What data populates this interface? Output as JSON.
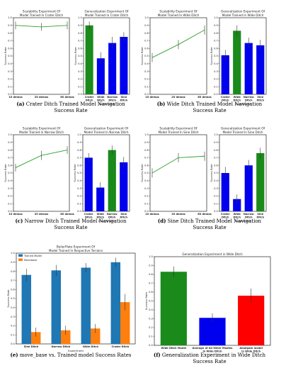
{
  "captions": [
    {
      "label": "(a)",
      "text": [
        "Crater Ditch Trained Model Navigation",
        "Success Rate"
      ]
    },
    {
      "label": "(b)",
      "text": [
        "Wide Ditch Trained Model Navigation",
        "Success Rate"
      ]
    },
    {
      "label": "(c)",
      "text": [
        "Narrow Ditch Trained Model Navigation",
        "Success Rate"
      ]
    },
    {
      "label": "(d)",
      "text": [
        "Sine Ditch Trained Model Navigation",
        "Success Rate"
      ]
    },
    {
      "label": "(e)",
      "text": [
        "move_base vs. Trained model Success Rates"
      ]
    },
    {
      "label": "(f)",
      "text": [
        "Generalization Experiment in Wide Ditch",
        "Success Rate"
      ]
    }
  ],
  "chart_data": [
    {
      "id": "a1",
      "type": "line",
      "title": [
        "Scalability Experiment Of",
        "Model Trained In Crater Ditch"
      ],
      "xlabel": "",
      "ylabel": "Success Rate",
      "categories": [
        "10 demos",
        "20 demos",
        "60 demos"
      ],
      "values": [
        0.9,
        0.88,
        0.9
      ],
      "errors": [
        0.05,
        0.05,
        0.05
      ],
      "ylim": [
        0,
        1.0
      ],
      "color": "#2ca02c"
    },
    {
      "id": "a2",
      "type": "bar",
      "title": [
        "Generalization Experiment Of",
        "Model Trained In Crater Ditch"
      ],
      "xlabel": "Experiment",
      "ylabel": "Success Rate",
      "categories": [
        [
          "Crater",
          "Ditch"
        ],
        [
          "Wide",
          "Ditch"
        ],
        [
          "Narrow",
          "Ditch"
        ],
        [
          "Sine",
          "Ditch"
        ]
      ],
      "values": [
        0.9,
        0.47,
        0.67,
        0.75
      ],
      "errors": [
        0.05,
        0.08,
        0.08,
        0.06
      ],
      "colors": [
        "#1a8a1a",
        "#0000ee",
        "#0000ee",
        "#0000ee"
      ],
      "ylim": [
        0,
        1.0
      ]
    },
    {
      "id": "b1",
      "type": "line",
      "title": [
        "Scalability Experiment Of",
        "Model Trained In Wide Ditch"
      ],
      "xlabel": "",
      "ylabel": "Success Rate",
      "categories": [
        "10 demos",
        "20 demos",
        "60 demos"
      ],
      "values": [
        0.48,
        0.65,
        0.84
      ],
      "errors": [
        0.06,
        0.06,
        0.06
      ],
      "ylim": [
        0,
        1.0
      ],
      "color": "#2ca02c"
    },
    {
      "id": "b2",
      "type": "bar",
      "title": [
        "Generalization Experiment Of",
        "Model Trained In Wide Ditch"
      ],
      "xlabel": "Experiment",
      "ylabel": "Success Rate",
      "categories": [
        [
          "Crater",
          "Ditch"
        ],
        [
          "Wide",
          "Ditch"
        ],
        [
          "Narrow",
          "Ditch"
        ],
        [
          "Sine",
          "Ditch"
        ]
      ],
      "values": [
        0.51,
        0.83,
        0.67,
        0.64
      ],
      "errors": [
        0.07,
        0.07,
        0.07,
        0.07
      ],
      "colors": [
        "#0000ee",
        "#1a8a1a",
        "#0000ee",
        "#0000ee"
      ],
      "ylim": [
        0,
        1.0
      ]
    },
    {
      "id": "c1",
      "type": "line",
      "title": [
        "Scalability Experiment Of",
        "Model Trained In Narrow Ditch"
      ],
      "xlabel": "",
      "ylabel": "Success Rate",
      "categories": [
        "10 demos",
        "20 demos",
        "60 demos"
      ],
      "values": [
        0.57,
        0.73,
        0.8
      ],
      "errors": [
        0.05,
        0.06,
        0.05
      ],
      "ylim": [
        0,
        1.0
      ],
      "color": "#2ca02c"
    },
    {
      "id": "c2",
      "type": "bar",
      "title": [
        "Generalization Experiment Of",
        "Model Trained In Narrow Ditch"
      ],
      "xlabel": "Experiment",
      "ylabel": "Success Rate",
      "categories": [
        [
          "Crater",
          "Ditch"
        ],
        [
          "Wide",
          "Ditch"
        ],
        [
          "Narrow",
          "Ditch"
        ],
        [
          "Sine",
          "Ditch"
        ]
      ],
      "values": [
        0.7,
        0.31,
        0.8,
        0.64
      ],
      "errors": [
        0.06,
        0.07,
        0.06,
        0.07
      ],
      "colors": [
        "#0000ee",
        "#0000ee",
        "#1a8a1a",
        "#0000ee"
      ],
      "ylim": [
        0,
        1.0
      ]
    },
    {
      "id": "d1",
      "type": "line",
      "title": [
        "Scalability Experiment Of",
        "Model Trained In Sine Ditch"
      ],
      "xlabel": "",
      "ylabel": "Success Rate",
      "categories": [
        "10 demos",
        "20 demos",
        "60 demos"
      ],
      "values": [
        0.5,
        0.7,
        0.72
      ],
      "errors": [
        0.06,
        0.06,
        0.06
      ],
      "ylim": [
        0,
        1.0
      ],
      "color": "#2ca02c"
    },
    {
      "id": "d2",
      "type": "bar",
      "title": [
        "Generalization Experiment Of",
        "Model Trained In Sine Ditch"
      ],
      "xlabel": "Experiment",
      "ylabel": "Success Rate",
      "categories": [
        [
          "Crater",
          "Ditch"
        ],
        [
          "Wide",
          "Ditch"
        ],
        [
          "Narrow",
          "Ditch"
        ],
        [
          "Sine",
          "Ditch"
        ]
      ],
      "values": [
        0.5,
        0.16,
        0.6,
        0.76
      ],
      "errors": [
        0.08,
        0.06,
        0.07,
        0.07
      ],
      "colors": [
        "#0000ee",
        "#0000ee",
        "#0000ee",
        "#1a8a1a"
      ],
      "ylim": [
        0,
        1.0
      ]
    },
    {
      "id": "e",
      "type": "bar",
      "title": [
        "BoilerPlate Experiment Of",
        "Model Trained In Respective Terrains"
      ],
      "xlabel": "Experiment",
      "ylabel": "Success Rate",
      "categories": [
        "Sine Ditch",
        "Narrow Ditch",
        "Wide Ditch",
        "Crater Ditch"
      ],
      "ylim": [
        0,
        1.0
      ],
      "legend": "top-left",
      "series": [
        {
          "name": "Trained Model",
          "color": "#1f77b4",
          "values": [
            0.76,
            0.81,
            0.84,
            0.9
          ],
          "errors": [
            0.07,
            0.06,
            0.05,
            0.05
          ]
        },
        {
          "name": "Movebase",
          "color": "#ff7f0e",
          "values": [
            0.13,
            0.15,
            0.17,
            0.46
          ],
          "errors": [
            0.05,
            0.05,
            0.05,
            0.09
          ]
        }
      ]
    },
    {
      "id": "f",
      "type": "bar",
      "title": [
        "Generalization Experiment in Wide Ditch"
      ],
      "xlabel": "",
      "ylabel": "Success Rate",
      "categories": [
        [
          "Wide Ditch Model"
        ],
        [
          "Average of All Other Models",
          "in Wide Ditch"
        ],
        [
          "Amalgam model",
          "in Wide Ditch"
        ]
      ],
      "values": [
        0.83,
        0.31,
        0.56
      ],
      "errors": [
        0.06,
        0.05,
        0.08
      ],
      "colors": [
        "#1a8a1a",
        "#0000ee",
        "#ff0000"
      ],
      "ylim": [
        0,
        1.0
      ]
    }
  ]
}
